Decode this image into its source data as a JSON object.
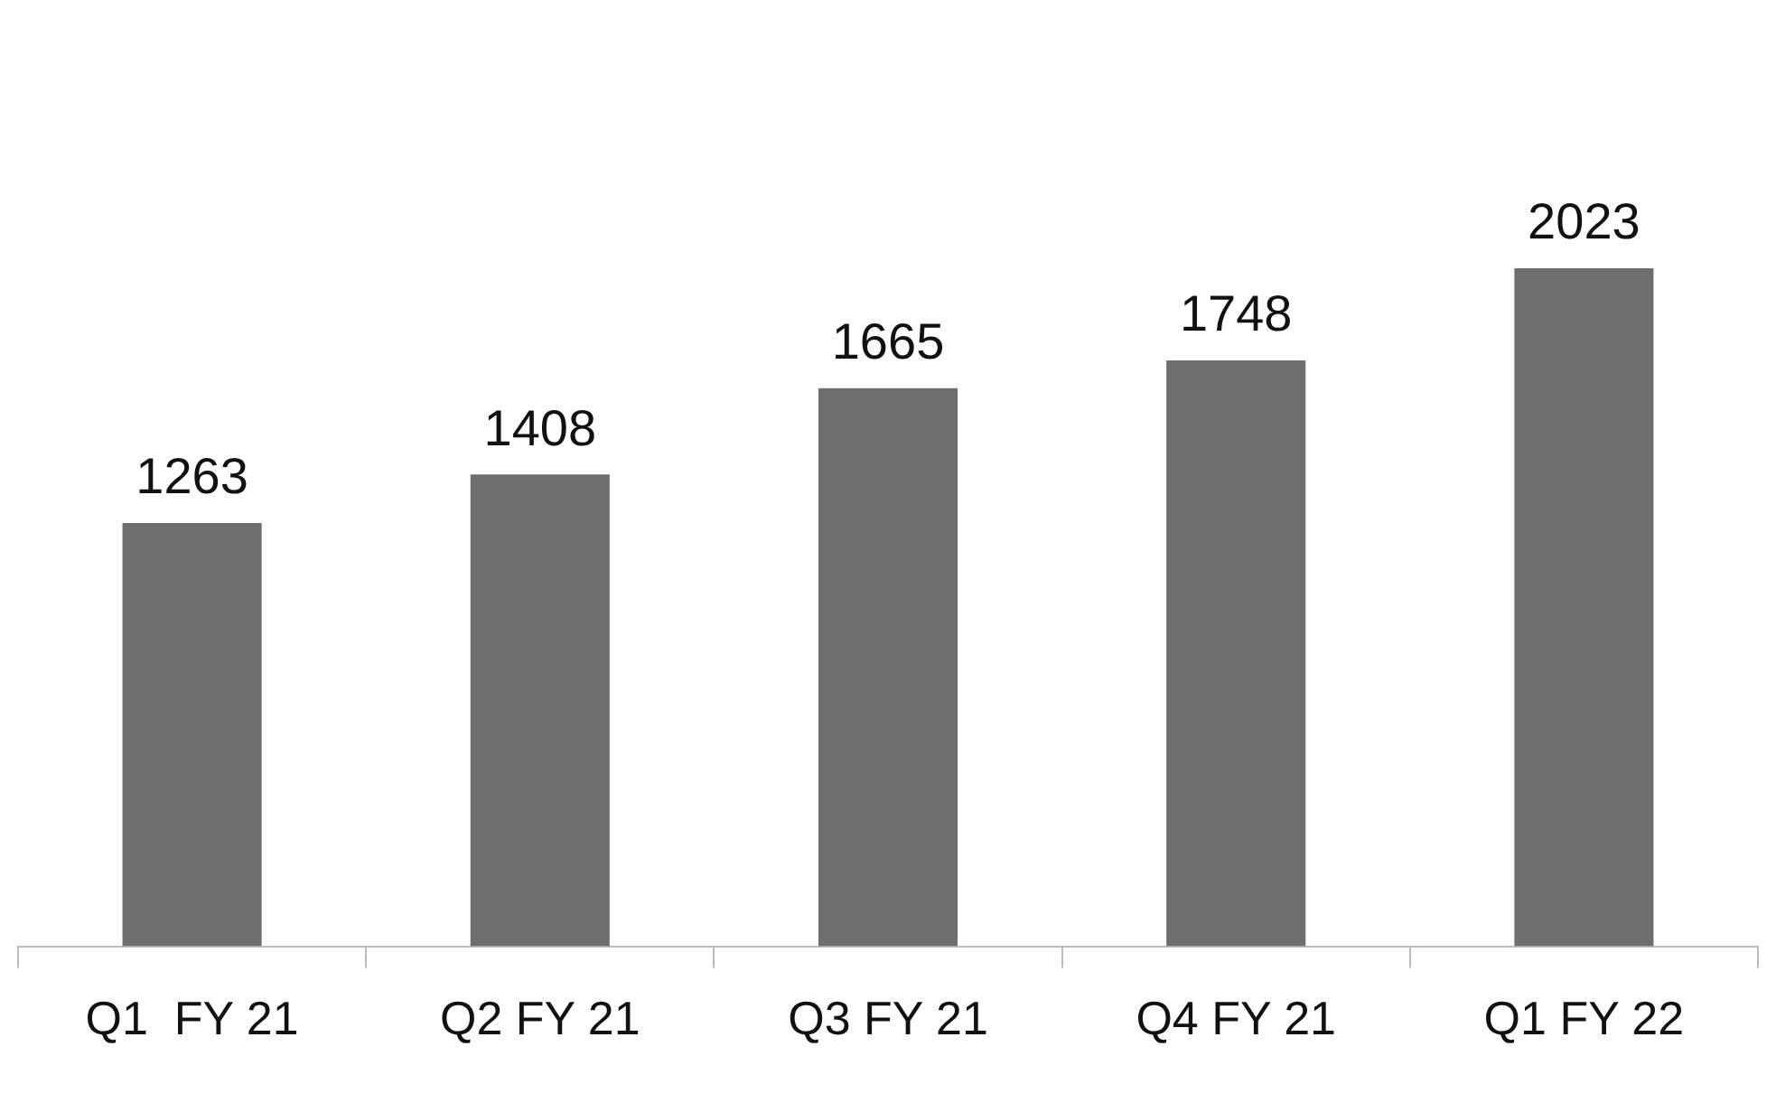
{
  "chart_data": {
    "type": "bar",
    "categories": [
      "Q1  FY 21",
      "Q2 FY 21",
      "Q3 FY 21",
      "Q4 FY 21",
      "Q1 FY 22"
    ],
    "values": [
      1263,
      1408,
      1665,
      1748,
      2023
    ],
    "color": "#6e6e6e",
    "data_labels": true,
    "grid": false,
    "legend": false
  }
}
